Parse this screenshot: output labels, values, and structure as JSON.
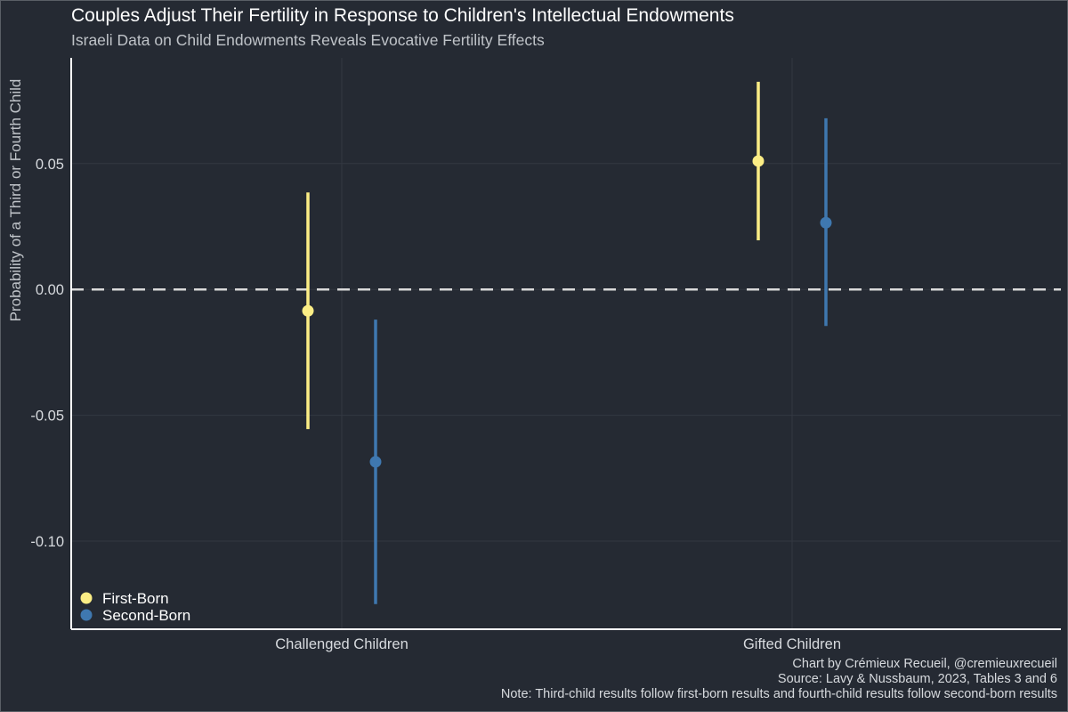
{
  "colors": {
    "background": "#252a33",
    "first_born": "#fbed85",
    "second_born": "#3f78b0",
    "grid": "#333842",
    "zero_line": "#d9d9d9",
    "axis": "#ffffff"
  },
  "chart_data": {
    "type": "pointrange",
    "title": "Couples Adjust Their Fertility in Response to Children's Intellectual Endowments",
    "subtitle": "Israeli Data on Child Endowments Reveals Evocative Fertility Effects",
    "xlabel": "",
    "ylabel": "Probability of a Third or Fourth Child",
    "categories": [
      "Challenged Children",
      "Gifted Children"
    ],
    "ylim": [
      -0.135,
      0.092
    ],
    "yticks": [
      0.05,
      0.0,
      -0.05,
      -0.1
    ],
    "ytick_labels": [
      "0.05",
      "0.00",
      "-0.05",
      "-0.10"
    ],
    "reference_line": 0.0,
    "legend_position": "bottom-left",
    "series": [
      {
        "name": "First-Born",
        "color": "#fbed85",
        "points": [
          {
            "category": "Challenged Children",
            "estimate": -0.0085,
            "lower": -0.0555,
            "upper": 0.0385
          },
          {
            "category": "Gifted Children",
            "estimate": 0.051,
            "lower": 0.0195,
            "upper": 0.0825
          }
        ]
      },
      {
        "name": "Second-Born",
        "color": "#3f78b0",
        "points": [
          {
            "category": "Challenged Children",
            "estimate": -0.0685,
            "lower": -0.125,
            "upper": -0.012
          },
          {
            "category": "Gifted Children",
            "estimate": 0.0265,
            "lower": -0.0145,
            "upper": 0.068
          }
        ]
      }
    ],
    "caption": [
      "Chart by Crémieux Recueil, @cremieuxrecueil",
      "Source: Lavy & Nussbaum, 2023, Tables 3 and 6",
      "Note: Third-child results follow first-born results and fourth-child results follow second-born results"
    ]
  }
}
